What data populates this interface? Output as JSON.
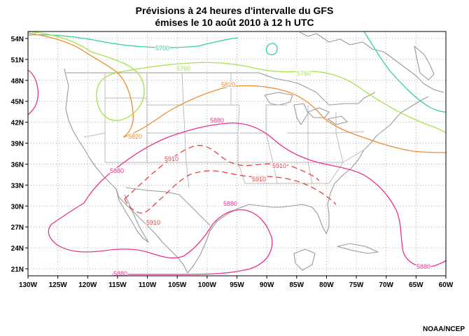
{
  "title": {
    "line1": "Prévisions à 24 heures d'intervalle du GFS",
    "line2": "émises le 10 août 2010 à 12 h UTC"
  },
  "credit": "NOAA/NCEP",
  "map": {
    "projection": "equirectangular",
    "lon_range": [
      -130,
      -60
    ],
    "lat_range": [
      20,
      55
    ],
    "lat_ticks": [
      "21N",
      "24N",
      "27N",
      "30N",
      "33N",
      "36N",
      "39N",
      "42N",
      "45N",
      "48N",
      "51N",
      "54N"
    ],
    "lon_ticks": [
      "130W",
      "125W",
      "120W",
      "115W",
      "110W",
      "105W",
      "100W",
      "95W",
      "90W",
      "85W",
      "80W",
      "75W",
      "70W",
      "65W",
      "60W"
    ],
    "grid": "dotted",
    "contour_labels": [
      {
        "text": "5700",
        "color": "#2fd39a"
      },
      {
        "text": "5760",
        "color": "#a6e24a"
      },
      {
        "text": "5760",
        "color": "#a6e24a"
      },
      {
        "text": "5820",
        "color": "#f08c30"
      },
      {
        "text": "5820",
        "color": "#f08c30"
      },
      {
        "text": "5880",
        "color": "#e8338e"
      },
      {
        "text": "5880",
        "color": "#e8338e"
      },
      {
        "text": "5880",
        "color": "#e8338e"
      },
      {
        "text": "5880",
        "color": "#e8338e"
      },
      {
        "text": "5880",
        "color": "#e8338e"
      },
      {
        "text": "5910",
        "color": "#e84040"
      },
      {
        "text": "5910",
        "color": "#e84040"
      },
      {
        "text": "5910",
        "color": "#e84040"
      },
      {
        "text": "5910",
        "color": "#e84040"
      }
    ]
  }
}
